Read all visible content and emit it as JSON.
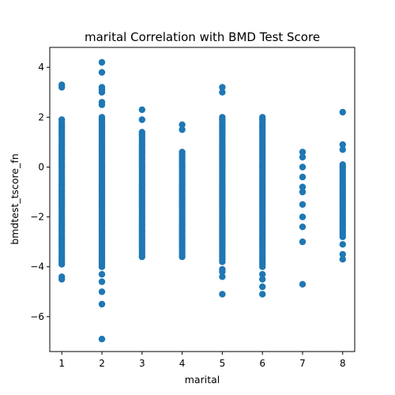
{
  "chart_data": {
    "type": "scatter",
    "title": "marital Correlation with BMD Test Score",
    "xlabel": "marital",
    "ylabel": "bmdtest_tscore_fn",
    "xlim": [
      0.7,
      8.3
    ],
    "ylim": [
      -7.4,
      4.8
    ],
    "xticks": [
      1,
      2,
      3,
      4,
      5,
      6,
      7,
      8
    ],
    "yticks": [
      -6,
      -4,
      -2,
      0,
      2,
      4
    ],
    "grid": false,
    "legend": "none",
    "marker_color": "#1f77b4",
    "groups": [
      {
        "x": 1,
        "y_min": -3.9,
        "y_max": 1.9,
        "outliers": [
          3.3,
          3.2,
          -4.4,
          -4.5
        ]
      },
      {
        "x": 2,
        "y_min": -4.0,
        "y_max": 2.0,
        "outliers": [
          4.2,
          3.8,
          3.2,
          3.1,
          3.0,
          2.6,
          2.5,
          -4.3,
          -4.6,
          -5.0,
          -5.5,
          -6.9
        ]
      },
      {
        "x": 3,
        "y_min": -3.6,
        "y_max": 1.4,
        "outliers": [
          2.3,
          1.9
        ]
      },
      {
        "x": 4,
        "y_min": -3.6,
        "y_max": 0.6,
        "outliers": [
          1.7,
          1.5
        ]
      },
      {
        "x": 5,
        "y_min": -3.8,
        "y_max": 2.0,
        "outliers": [
          3.2,
          3.0,
          -4.1,
          -4.2,
          -4.4,
          -5.1
        ]
      },
      {
        "x": 6,
        "y_min": -4.0,
        "y_max": 2.0,
        "outliers": [
          -4.3,
          -4.5,
          -4.8,
          -5.1
        ]
      },
      {
        "x": 7,
        "points": [
          0.6,
          0.4,
          0.0,
          -0.4,
          -0.8,
          -1.0,
          -1.5,
          -2.0,
          -2.4,
          -3.0,
          -4.7
        ]
      },
      {
        "x": 8,
        "y_min": -2.8,
        "y_max": 0.1,
        "outliers": [
          2.2,
          0.9,
          0.7,
          -3.1,
          -3.5,
          -3.7
        ]
      }
    ]
  }
}
